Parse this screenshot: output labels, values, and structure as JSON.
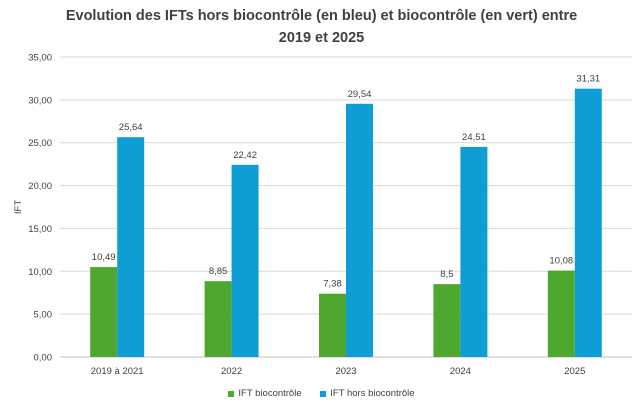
{
  "title_line1": "Evolution des IFTs hors biocontrôle (en bleu) et biocontrôle (en vert) entre",
  "title_line2": "2019 et 2025",
  "chart_data": {
    "type": "bar",
    "title": "Evolution des IFTs hors biocontrôle (en bleu) et biocontrôle (en vert) entre 2019 et 2025",
    "categories": [
      "2019 à 2021",
      "2022",
      "2023",
      "2024",
      "2025"
    ],
    "series": [
      {
        "name": "IFT biocontrôle",
        "color": "#4ea72e",
        "values": [
          10.49,
          8.85,
          7.38,
          8.5,
          10.08
        ],
        "labels": [
          "10,49",
          "8,85",
          "7,38",
          "8,5",
          "10,08"
        ]
      },
      {
        "name": "IFT hors biocontrôle",
        "color": "#0e9ed5",
        "values": [
          25.64,
          22.42,
          29.54,
          24.51,
          31.31
        ],
        "labels": [
          "25,64",
          "22,42",
          "29,54",
          "24,51",
          "31,31"
        ]
      }
    ],
    "xlabel": "",
    "ylabel": "IFT",
    "ylim": [
      0,
      35
    ],
    "yticks": [
      "0,00",
      "5,00",
      "10,00",
      "15,00",
      "20,00",
      "25,00",
      "30,00",
      "35,00"
    ],
    "grid": true,
    "legend_position": "bottom"
  }
}
